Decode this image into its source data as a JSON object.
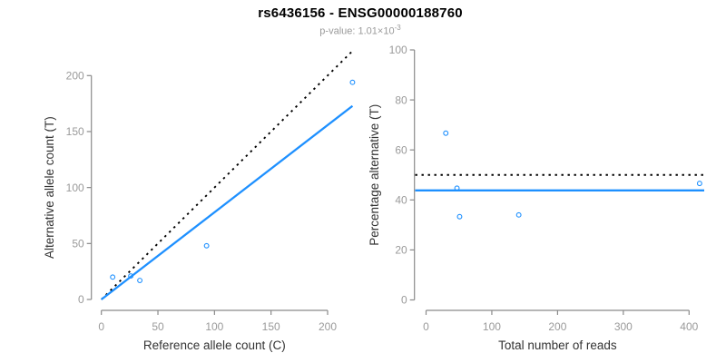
{
  "header": {
    "title": "rs6436156 - ENSG00000188760",
    "subtitle_text": "p-value: 1.01×10",
    "subtitle_exponent": "-3"
  },
  "colors": {
    "accent": "#1E90FF",
    "dotted_line": "#000000",
    "axis_line": "#8a8a8a",
    "tick_label": "#9a9a9a",
    "axis_title": "#333333",
    "title": "#000000",
    "subtitle": "#9a9a9a"
  },
  "chart_data": [
    {
      "type": "scatter",
      "panel": "allele-counts",
      "xlabel": "Reference allele count (C)",
      "ylabel": "Alternative allele count (T)",
      "xticks": [
        0,
        50,
        100,
        150,
        200
      ],
      "yticks": [
        0,
        50,
        100,
        150,
        200
      ],
      "xlim": [
        0,
        222
      ],
      "ylim": [
        0,
        222
      ],
      "grid": false,
      "points": [
        [
          10,
          20
        ],
        [
          26,
          21
        ],
        [
          34,
          17
        ],
        [
          93,
          48
        ],
        [
          222,
          194
        ]
      ],
      "lines": [
        {
          "name": "identity-line",
          "x": [
            0,
            222
          ],
          "y": [
            0,
            222
          ],
          "style": "dotted",
          "color": "dotted_line"
        },
        {
          "name": "fit-line",
          "x": [
            0,
            222
          ],
          "y": [
            0,
            172.9
          ],
          "style": "solid",
          "color": "accent"
        }
      ]
    },
    {
      "type": "scatter",
      "panel": "percentage-alternative",
      "xlabel": "Total number of reads",
      "ylabel": "Percentage alternative (T)",
      "xticks": [
        0,
        100,
        200,
        300,
        400
      ],
      "yticks": [
        0,
        20,
        40,
        60,
        80,
        100
      ],
      "xlim": [
        0,
        416
      ],
      "ylim": [
        0,
        100
      ],
      "grid": false,
      "points": [
        [
          30,
          66.7
        ],
        [
          47,
          44.7
        ],
        [
          51,
          33.3
        ],
        [
          141,
          34
        ],
        [
          416,
          46.6
        ]
      ],
      "hlines": [
        {
          "name": "expected-ratio-line",
          "y": 50,
          "style": "dotted",
          "color": "dotted_line"
        },
        {
          "name": "observed-ratio-line",
          "y": 43.8,
          "style": "solid",
          "color": "accent"
        }
      ]
    }
  ]
}
